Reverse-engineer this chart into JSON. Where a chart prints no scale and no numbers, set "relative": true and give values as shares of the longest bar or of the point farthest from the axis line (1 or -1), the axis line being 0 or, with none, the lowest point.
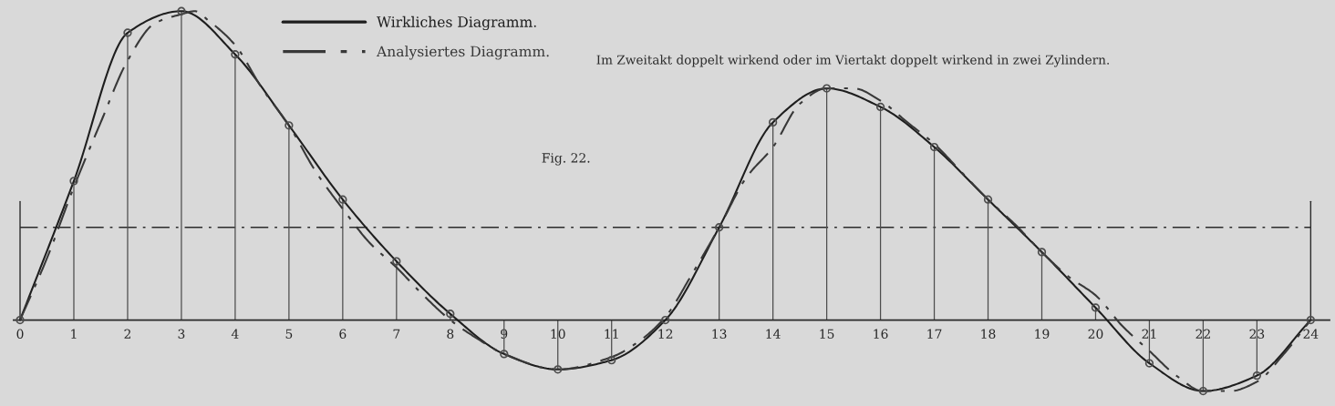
{
  "chart_data": {
    "type": "line",
    "relative": true,
    "annotations": [
      "Im Zweitakt doppelt wirkend oder im Viertakt doppelt wirkend in zwei Zylindern.",
      "Fig. 22."
    ],
    "x": [
      0,
      1,
      2,
      3,
      4,
      5,
      6,
      7,
      8,
      9,
      10,
      11,
      12,
      13,
      14,
      15,
      16,
      17,
      18,
      19,
      20,
      21,
      22,
      23,
      24
    ],
    "xlim": [
      -0.12,
      24.35
    ],
    "xticks": [
      0,
      1,
      2,
      3,
      4,
      5,
      6,
      7,
      8,
      9,
      10,
      11,
      12,
      13,
      14,
      15,
      16,
      17,
      18,
      19,
      20,
      21,
      22,
      23,
      24
    ],
    "legend": "top left",
    "series": [
      {
        "name": "Wirkliches Diagramm.",
        "color": "#1e1e1e",
        "line_style": "solid",
        "marker": "none",
        "values": [
          0,
          0.45,
          0.93,
          1.0,
          0.86,
          0.63,
          0.39,
          0.19,
          0.02,
          -0.11,
          -0.16,
          -0.13,
          0,
          0.3,
          0.64,
          0.75,
          0.69,
          0.56,
          0.39,
          0.22,
          0.04,
          -0.14,
          -0.23,
          -0.18,
          0
        ]
      },
      {
        "name": "Analysiertes Diagramm.",
        "color": "#383838",
        "line_style": "dashdot",
        "marker": "none",
        "x": [
          0,
          0.5,
          1,
          1.5,
          2,
          2.5,
          3,
          3.25,
          3.5,
          4,
          4.5,
          5,
          5.5,
          6,
          6.5,
          7,
          7.5,
          8,
          8.5,
          9,
          10,
          11,
          11.5,
          12,
          12.5,
          13,
          13.5,
          14,
          14.5,
          15,
          15.5,
          16,
          16.5,
          17,
          17.5,
          18,
          18.5,
          19,
          19.5,
          20,
          20.5,
          21,
          21.5,
          22,
          22.5,
          23,
          23.5,
          24
        ],
        "values": [
          0,
          0.2,
          0.43,
          0.64,
          0.84,
          0.96,
          0.99,
          1.0,
          0.97,
          0.89,
          0.75,
          0.63,
          0.48,
          0.36,
          0.25,
          0.17,
          0.08,
          0,
          -0.06,
          -0.11,
          -0.16,
          -0.12,
          -0.07,
          0.01,
          0.15,
          0.3,
          0.46,
          0.56,
          0.7,
          0.75,
          0.75,
          0.71,
          0.64,
          0.57,
          0.48,
          0.39,
          0.31,
          0.22,
          0.14,
          0.08,
          -0.02,
          -0.1,
          -0.18,
          -0.23,
          -0.23,
          -0.2,
          -0.11,
          0
        ]
      },
      {
        "type": "lollipop",
        "color": "#4d4d4d",
        "marker": "circle",
        "values": [
          0,
          0.45,
          0.93,
          1.0,
          0.86,
          0.63,
          0.39,
          0.19,
          0.02,
          -0.11,
          -0.16,
          -0.13,
          0,
          0.3,
          0.64,
          0.75,
          0.69,
          0.56,
          0.39,
          0.22,
          0.04,
          -0.14,
          -0.23,
          -0.18,
          0
        ]
      }
    ],
    "ref_lines": [
      {
        "axis": "y",
        "value": 0.3,
        "line_style": "dashdot"
      },
      {
        "axis": "x",
        "value": 0
      },
      {
        "axis": "x",
        "value": 24
      }
    ]
  }
}
